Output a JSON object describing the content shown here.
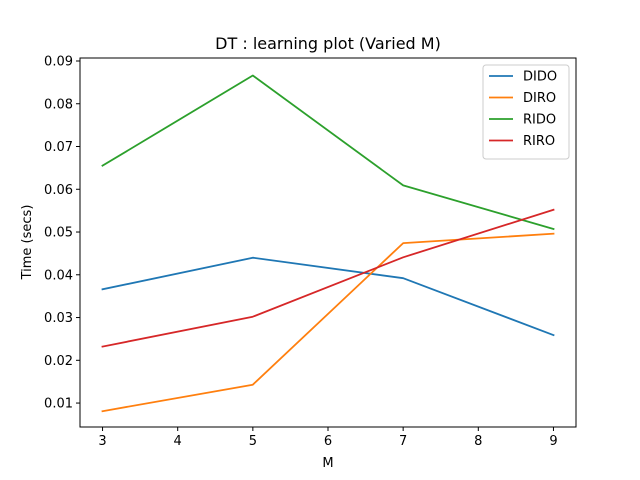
{
  "chart_data": {
    "type": "line",
    "title": "DT : learning plot (Varied M)",
    "xlabel": "M",
    "ylabel": "Time (secs)",
    "x": [
      3,
      5,
      7,
      9
    ],
    "xlim": [
      2.7,
      9.3
    ],
    "ylim": [
      0.0044,
      0.0907
    ],
    "xticks": [
      3,
      4,
      5,
      6,
      7,
      8,
      9
    ],
    "yticks": [
      0.01,
      0.02,
      0.03,
      0.04,
      0.05,
      0.06,
      0.07,
      0.08,
      0.09
    ],
    "ytick_labels": [
      "0.01",
      "0.02",
      "0.03",
      "0.04",
      "0.05",
      "0.06",
      "0.07",
      "0.08",
      "0.09"
    ],
    "grid": false,
    "legend_position": "top-right",
    "series": [
      {
        "name": "DIDO",
        "color": "#1f77b4",
        "values": [
          0.0366,
          0.044,
          0.0392,
          0.0259
        ]
      },
      {
        "name": "DIRO",
        "color": "#ff7f0e",
        "values": [
          0.0081,
          0.0143,
          0.0474,
          0.0496
        ]
      },
      {
        "name": "RIDO",
        "color": "#2ca02c",
        "values": [
          0.0655,
          0.0866,
          0.0609,
          0.0507
        ]
      },
      {
        "name": "RIRO",
        "color": "#d62728",
        "values": [
          0.0232,
          0.0302,
          0.0441,
          0.0552
        ]
      }
    ]
  }
}
